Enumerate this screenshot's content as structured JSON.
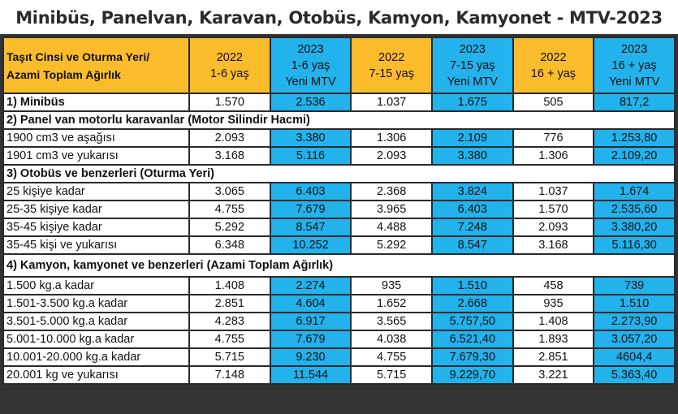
{
  "title": "Minibüs, Panelvan, Karavan, Otobüs, Kamyon, Kamyonet - MTV-2023",
  "colors": {
    "header_orange": "#fbbc2c",
    "new_mtv_blue": "#22b2ec"
  },
  "header": {
    "label": [
      "Taşıt Cinsi ve Oturma Yeri/",
      "Azami Toplam Ağırlık"
    ],
    "columns": [
      [
        "2022",
        "1-6 yaş"
      ],
      [
        "2023",
        "1-6 yaş",
        "Yeni MTV"
      ],
      [
        "2022",
        "7-15 yaş"
      ],
      [
        "2023",
        "7-15 yaş",
        "Yeni MTV"
      ],
      [
        "2022",
        "16 + yaş"
      ],
      [
        "2023",
        "16 + yaş",
        "Yeni MTV"
      ]
    ]
  },
  "rows": [
    {
      "type": "data",
      "label": "1) Minibüs",
      "bold": true,
      "values": [
        "1.570",
        "2.536",
        "1.037",
        "1.675",
        "505",
        "817,2"
      ]
    },
    {
      "type": "section",
      "label": "2) Panel van motorlu karavanlar (Motor Silindir Hacmi)"
    },
    {
      "type": "data",
      "label": "1900 cm3 ve aşağısı",
      "values": [
        "2.093",
        "3.380",
        "1.306",
        "2.109",
        "776",
        "1.253,80"
      ]
    },
    {
      "type": "data",
      "label": "1901 cm3 ve yukarısı",
      "values": [
        "3.168",
        "5.116",
        "2.093",
        "3.380",
        "1.306",
        "2.109,20"
      ]
    },
    {
      "type": "section",
      "label": "3) Otobüs ve benzerleri (Oturma Yeri)"
    },
    {
      "type": "data",
      "label": "25 kişiye kadar",
      "values": [
        "3.065",
        "6.403",
        "2.368",
        "3.824",
        "1.037",
        "1.674"
      ]
    },
    {
      "type": "data",
      "label": "25-35 kişiye kadar",
      "values": [
        "4.755",
        "7.679",
        "3.965",
        "6.403",
        "1.570",
        "2.535,60"
      ]
    },
    {
      "type": "data",
      "label": "35-45 kişiye kadar",
      "values": [
        "5.292",
        "8.547",
        "4.488",
        "7.248",
        "2.093",
        "3.380,20"
      ]
    },
    {
      "type": "data",
      "label": "35-45 kişi ve yukarısı",
      "values": [
        "6.348",
        "10.252",
        "5.292",
        "8.547",
        "3.168",
        "5.116,30"
      ]
    },
    {
      "type": "section",
      "label": "4) Kamyon, kamyonet ve benzerleri (Azami Toplam Ağırlık)",
      "tall": true
    },
    {
      "type": "data",
      "label": "1.500 kg.a kadar",
      "values": [
        "1.408",
        "2.274",
        "935",
        "1.510",
        "458",
        "739"
      ]
    },
    {
      "type": "data",
      "label": "1.501-3.500 kg.a kadar",
      "values": [
        "2.851",
        "4.604",
        "1.652",
        "2.668",
        "935",
        "1.510"
      ]
    },
    {
      "type": "data",
      "label": "3.501-5.000 kg.a kadar",
      "values": [
        "4.283",
        "6.917",
        "3.565",
        "5.757,50",
        "1.408",
        "2.273,90"
      ]
    },
    {
      "type": "data",
      "label": "5.001-10.000 kg.a kadar",
      "values": [
        "4.755",
        "7.679",
        "4.038",
        "6.521,40",
        "1.893",
        "3.057,20"
      ]
    },
    {
      "type": "data",
      "label": "10.001-20.000 kg.a kadar",
      "values": [
        "5.715",
        "9.230",
        "4.755",
        "7.679,30",
        "2.851",
        "4604,4"
      ]
    },
    {
      "type": "data",
      "label": "20.001 kg  ve yukarısı",
      "values": [
        "7.148",
        "11.544",
        "5.715",
        "9.229,70",
        "3.221",
        "5.363,40"
      ]
    }
  ]
}
